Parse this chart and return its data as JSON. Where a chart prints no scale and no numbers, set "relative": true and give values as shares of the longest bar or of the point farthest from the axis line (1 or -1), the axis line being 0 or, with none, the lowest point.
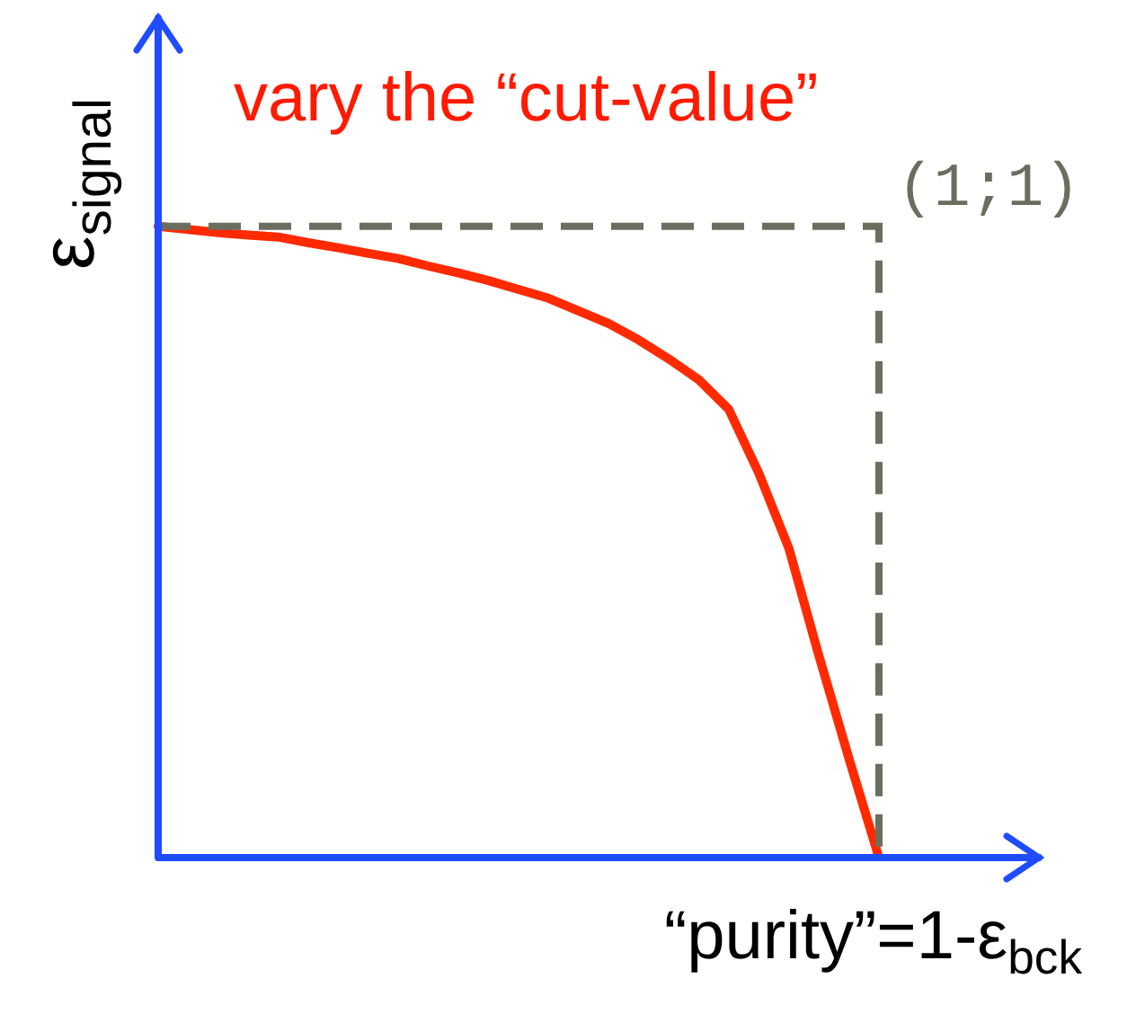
{
  "chart_data": {
    "type": "line",
    "title": "vary the “cut-value”",
    "xlabel": "“purity”=1-ε$_{bck}$",
    "ylabel": "ε$_{signal}$",
    "relative": true,
    "tick_labels": false,
    "grid": false,
    "legend": false,
    "marker": "none",
    "line_style": "solid",
    "categories": [
      null,
      null,
      null,
      null,
      null,
      null,
      null,
      null,
      null,
      null,
      null,
      null,
      null,
      null,
      null,
      null,
      null,
      null,
      null,
      null,
      null,
      null,
      null,
      null,
      null
    ],
    "series": [
      {
        "color": "#ff2a00",
        "values": [
          1,
          0.995,
          0.99,
          0.986,
          0.983,
          0.974,
          0.966,
          0.957,
          0.949,
          0.937,
          0.926,
          0.914,
          0.9,
          0.886,
          0.866,
          0.846,
          0.82,
          0.79,
          0.757,
          0.71,
          0.609,
          0.49,
          0.32,
          0.157,
          0
        ]
      }
    ],
    "ref_lines": [
      {
        "axis": "y",
        "value": 1,
        "color": "#6b6e5f",
        "line_style": "dashed"
      }
    ],
    "annotations": [
      "(1;1)"
    ]
  }
}
